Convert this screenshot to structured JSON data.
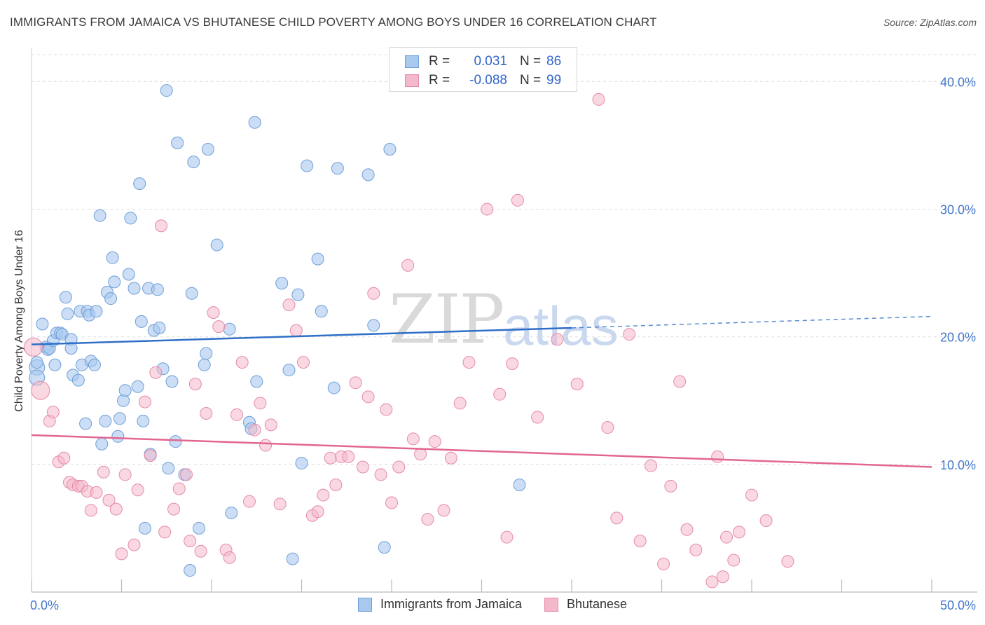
{
  "title": "IMMIGRANTS FROM JAMAICA VS BHUTANESE CHILD POVERTY AMONG BOYS UNDER 16 CORRELATION CHART",
  "source": "Source: ZipAtlas.com",
  "watermark": {
    "zip": "ZIP",
    "atlas": "atlas"
  },
  "legend": {
    "series1": {
      "r_label": "R =",
      "r_value": "0.031",
      "n_label": "N =",
      "n_value": "86"
    },
    "series2": {
      "r_label": "R =",
      "r_value": "-0.088",
      "n_label": "N =",
      "n_value": "99"
    }
  },
  "bottom_legend": {
    "series1": "Immigrants from Jamaica",
    "series2": "Bhutanese"
  },
  "colors": {
    "blue_fill": "#a9c8ee",
    "blue_stroke": "#6f9fd8",
    "blue_line": "#2f6fc7",
    "pink_fill": "#f4b8cb",
    "pink_stroke": "#e68aa8",
    "pink_line": "#e26690",
    "grid": "#dddddd",
    "tick_text": "#4477cc"
  },
  "chart_data": {
    "type": "scatter",
    "title": "IMMIGRANTS FROM JAMAICA VS BHUTANESE CHILD POVERTY AMONG BOYS UNDER 16 CORRELATION CHART",
    "xlabel": "",
    "ylabel": "Child Poverty Among Boys Under 16",
    "xlim": [
      0,
      50
    ],
    "ylim": [
      0,
      42
    ],
    "x_tick_labels": [
      "0.0%",
      "50.0%"
    ],
    "y_ticks": [
      10,
      20,
      30,
      40
    ],
    "y_tick_labels": [
      "10.0%",
      "20.0%",
      "30.0%",
      "40.0%"
    ],
    "series": [
      {
        "name": "Immigrants from Jamaica",
        "r": 0.031,
        "n": 86,
        "trend": {
          "x0": 0,
          "y0": 19.4,
          "x1": 30,
          "y1": 20.7,
          "dash_x1": 50,
          "dash_y1": 21.6
        },
        "points": [
          [
            0.3,
            17.6
          ],
          [
            0.3,
            18.0
          ],
          [
            0.3,
            16.8
          ],
          [
            0.6,
            21.0
          ],
          [
            0.8,
            19.2
          ],
          [
            0.9,
            19.0
          ],
          [
            1.0,
            19.1
          ],
          [
            1.2,
            19.7
          ],
          [
            1.3,
            17.8
          ],
          [
            1.4,
            20.3
          ],
          [
            1.6,
            20.3
          ],
          [
            1.7,
            20.2
          ],
          [
            1.9,
            23.1
          ],
          [
            2.0,
            21.8
          ],
          [
            2.2,
            19.8
          ],
          [
            2.2,
            19.1
          ],
          [
            2.3,
            17.0
          ],
          [
            2.6,
            16.6
          ],
          [
            2.7,
            22.0
          ],
          [
            2.8,
            17.8
          ],
          [
            3.0,
            13.2
          ],
          [
            3.1,
            22.0
          ],
          [
            3.2,
            21.7
          ],
          [
            3.3,
            18.1
          ],
          [
            3.5,
            17.8
          ],
          [
            3.6,
            22.0
          ],
          [
            3.8,
            29.5
          ],
          [
            3.9,
            11.6
          ],
          [
            4.1,
            13.4
          ],
          [
            4.2,
            23.5
          ],
          [
            4.4,
            23.0
          ],
          [
            4.5,
            26.2
          ],
          [
            4.6,
            24.3
          ],
          [
            4.8,
            12.2
          ],
          [
            4.9,
            13.6
          ],
          [
            5.1,
            15.0
          ],
          [
            5.2,
            15.8
          ],
          [
            5.4,
            24.9
          ],
          [
            5.5,
            29.3
          ],
          [
            5.7,
            23.8
          ],
          [
            5.9,
            16.1
          ],
          [
            6.0,
            32.0
          ],
          [
            6.1,
            21.2
          ],
          [
            6.2,
            13.4
          ],
          [
            6.3,
            5.0
          ],
          [
            6.5,
            23.8
          ],
          [
            6.6,
            10.8
          ],
          [
            6.8,
            20.5
          ],
          [
            7.0,
            23.7
          ],
          [
            7.1,
            20.7
          ],
          [
            7.3,
            17.5
          ],
          [
            7.5,
            39.3
          ],
          [
            7.6,
            9.7
          ],
          [
            7.8,
            16.5
          ],
          [
            8.0,
            11.8
          ],
          [
            8.1,
            35.2
          ],
          [
            8.5,
            9.2
          ],
          [
            8.8,
            1.7
          ],
          [
            8.9,
            23.4
          ],
          [
            9.0,
            33.7
          ],
          [
            9.3,
            5.0
          ],
          [
            9.6,
            17.8
          ],
          [
            9.7,
            18.7
          ],
          [
            9.8,
            34.7
          ],
          [
            10.3,
            27.2
          ],
          [
            11.0,
            20.6
          ],
          [
            11.1,
            6.2
          ],
          [
            12.1,
            13.3
          ],
          [
            12.2,
            12.8
          ],
          [
            12.4,
            36.8
          ],
          [
            12.5,
            16.5
          ],
          [
            13.9,
            24.2
          ],
          [
            14.3,
            17.4
          ],
          [
            14.5,
            2.6
          ],
          [
            14.8,
            23.3
          ],
          [
            15.0,
            10.1
          ],
          [
            15.3,
            33.4
          ],
          [
            15.9,
            26.1
          ],
          [
            16.1,
            22.0
          ],
          [
            16.8,
            16.0
          ],
          [
            17.0,
            33.2
          ],
          [
            18.7,
            32.7
          ],
          [
            19.0,
            20.9
          ],
          [
            19.6,
            3.5
          ],
          [
            19.9,
            34.7
          ],
          [
            27.1,
            8.4
          ]
        ]
      },
      {
        "name": "Bhutanese",
        "r": -0.088,
        "n": 99,
        "trend": {
          "x0": 0,
          "y0": 12.3,
          "x1": 50,
          "y1": 9.8
        },
        "points": [
          [
            0.1,
            19.2
          ],
          [
            0.5,
            15.8
          ],
          [
            1.0,
            13.4
          ],
          [
            1.2,
            14.1
          ],
          [
            1.5,
            10.2
          ],
          [
            1.8,
            10.5
          ],
          [
            2.1,
            8.6
          ],
          [
            2.3,
            8.4
          ],
          [
            2.6,
            8.3
          ],
          [
            2.8,
            8.3
          ],
          [
            3.1,
            7.9
          ],
          [
            3.3,
            6.4
          ],
          [
            3.6,
            7.8
          ],
          [
            4.0,
            9.4
          ],
          [
            4.3,
            7.2
          ],
          [
            4.7,
            6.5
          ],
          [
            5.0,
            3.0
          ],
          [
            5.2,
            9.2
          ],
          [
            5.7,
            3.7
          ],
          [
            5.9,
            8.0
          ],
          [
            6.3,
            14.9
          ],
          [
            6.6,
            10.7
          ],
          [
            6.9,
            17.2
          ],
          [
            7.2,
            28.7
          ],
          [
            7.4,
            4.7
          ],
          [
            7.9,
            6.5
          ],
          [
            8.2,
            8.1
          ],
          [
            8.6,
            9.2
          ],
          [
            8.8,
            4.0
          ],
          [
            9.1,
            16.3
          ],
          [
            9.4,
            3.2
          ],
          [
            9.7,
            14.0
          ],
          [
            10.1,
            21.9
          ],
          [
            10.4,
            20.8
          ],
          [
            10.8,
            3.3
          ],
          [
            11.0,
            2.7
          ],
          [
            11.4,
            13.9
          ],
          [
            11.7,
            18.0
          ],
          [
            12.1,
            7.1
          ],
          [
            12.4,
            12.7
          ],
          [
            12.7,
            14.8
          ],
          [
            13.0,
            11.5
          ],
          [
            13.3,
            13.1
          ],
          [
            13.8,
            6.9
          ],
          [
            14.3,
            22.5
          ],
          [
            14.7,
            20.5
          ],
          [
            15.1,
            18.0
          ],
          [
            15.6,
            6.0
          ],
          [
            15.9,
            6.3
          ],
          [
            16.2,
            7.6
          ],
          [
            16.6,
            10.5
          ],
          [
            16.9,
            8.4
          ],
          [
            17.2,
            10.6
          ],
          [
            17.6,
            10.6
          ],
          [
            18.0,
            16.4
          ],
          [
            18.4,
            9.8
          ],
          [
            18.7,
            15.3
          ],
          [
            19.0,
            23.4
          ],
          [
            19.4,
            9.2
          ],
          [
            19.7,
            14.3
          ],
          [
            20.0,
            7.0
          ],
          [
            20.4,
            9.8
          ],
          [
            20.9,
            25.6
          ],
          [
            21.2,
            12.0
          ],
          [
            21.6,
            10.8
          ],
          [
            22.0,
            5.7
          ],
          [
            22.4,
            11.8
          ],
          [
            22.9,
            6.4
          ],
          [
            23.3,
            10.5
          ],
          [
            23.8,
            14.8
          ],
          [
            24.3,
            18.0
          ],
          [
            25.3,
            30.0
          ],
          [
            26.0,
            15.5
          ],
          [
            26.4,
            4.3
          ],
          [
            26.7,
            17.9
          ],
          [
            27.0,
            30.7
          ],
          [
            28.1,
            13.7
          ],
          [
            29.2,
            19.8
          ],
          [
            30.3,
            16.3
          ],
          [
            31.5,
            38.6
          ],
          [
            32.0,
            12.9
          ],
          [
            32.5,
            5.8
          ],
          [
            33.2,
            20.2
          ],
          [
            33.8,
            4.0
          ],
          [
            34.4,
            9.9
          ],
          [
            35.1,
            2.2
          ],
          [
            35.5,
            8.3
          ],
          [
            36.0,
            16.5
          ],
          [
            36.4,
            4.9
          ],
          [
            36.9,
            3.3
          ],
          [
            37.8,
            0.8
          ],
          [
            38.1,
            10.6
          ],
          [
            38.4,
            1.2
          ],
          [
            38.6,
            4.3
          ],
          [
            39.0,
            2.5
          ],
          [
            39.3,
            4.7
          ],
          [
            40.0,
            7.6
          ],
          [
            40.8,
            5.6
          ],
          [
            42.0,
            2.4
          ]
        ]
      }
    ]
  }
}
